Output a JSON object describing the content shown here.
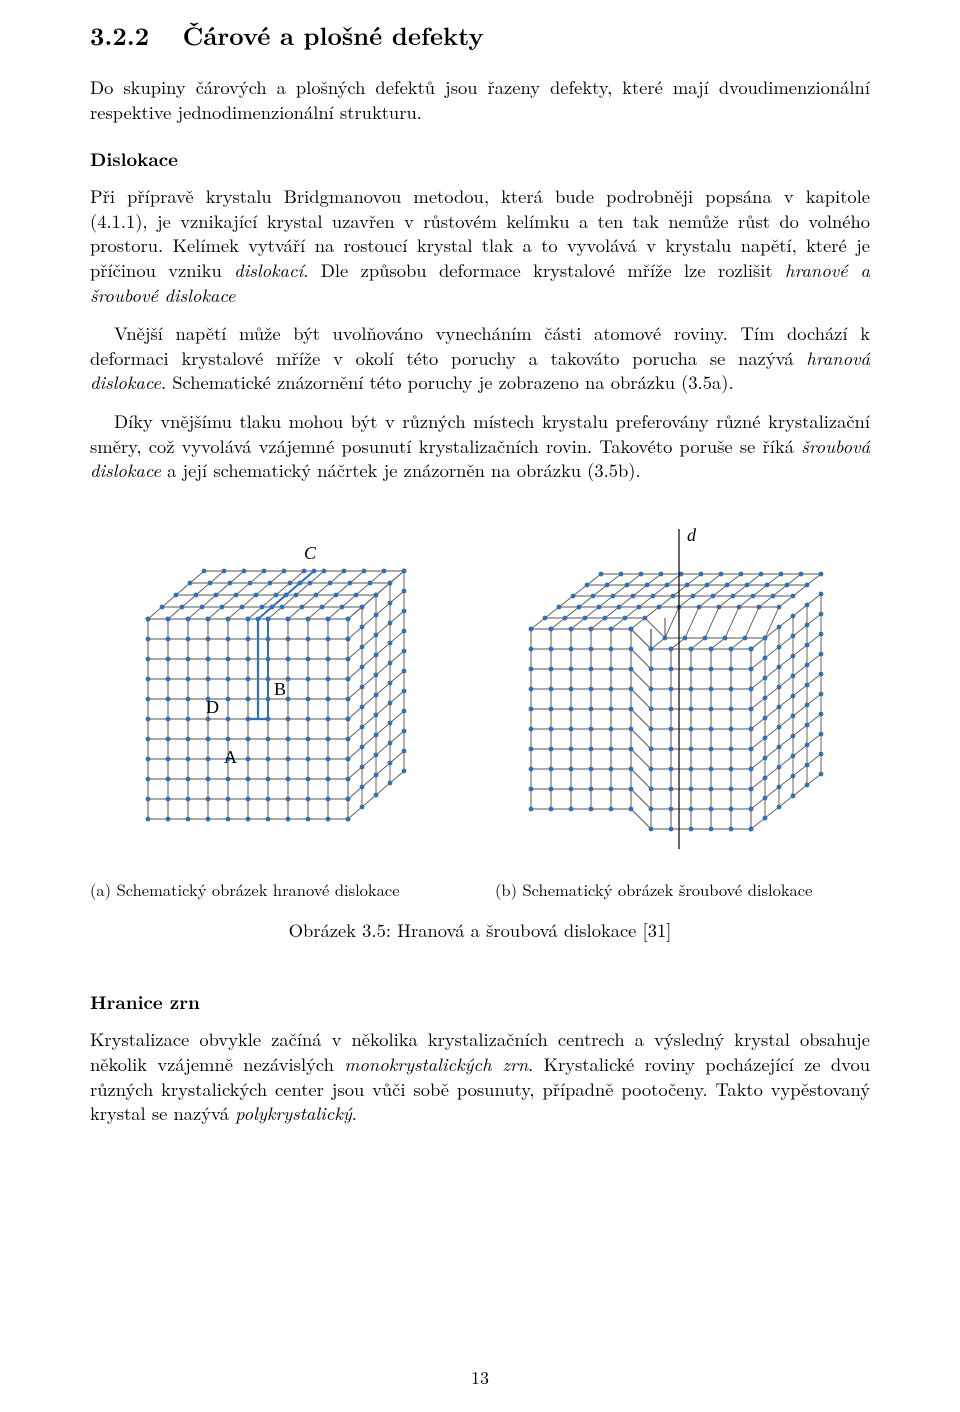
{
  "section": {
    "number": "3.2.2",
    "title": "Čárové a plošné defekty"
  },
  "para_intro": "Do skupiny čárových a plošných defektů jsou řazeny defekty, které mají dvoudimenzionální respektive jednodimenzionální strukturu.",
  "subhead_dislokace": "Dislokace",
  "para_disl_1_before_italic": "Při přípravě krystalu Bridgmanovou metodou, která bude podrobněji popsána v kapitole (4.1.1), je vznikající krystal uzavřen v růstovém kelímku a ten tak nemůže růst do volného prostoru. Kelímek vytváří na rostoucí krystal tlak a to vyvolává v krystalu napětí, které je příčinou vzniku ",
  "para_disl_1_italic_a": "dislokací",
  "para_disl_1_middle": ". Dle způsobu deformace krystalové mříže lze rozlišit ",
  "para_disl_1_italic_b": "hranové a šroubové dislokace",
  "para_disl_2_before_italic": "Vnější napětí může být uvolňováno vynecháním části atomové roviny. Tím dochází k deformaci krystalové mříže v okolí této poruchy a takováto porucha se nazývá ",
  "para_disl_2_italic": "hranová dislokace",
  "para_disl_2_after": ". Schematické znázornění této poruchy je zobrazeno na obrázku (3.5a).",
  "para_disl_3_before_italic": "Díky vnějšímu tlaku mohou být v různých místech krystalu preferovány různé krystalizační směry, což vyvolává vzájemné posunutí krystalizačních rovin. Takovéto poruše se říká ",
  "para_disl_3_italic": "šroubová dislokace",
  "para_disl_3_after": " a její schematický náčrtek je znázorněn na obrázku (3.5b).",
  "figure": {
    "subcap_a": "(a) Schematický obrázek hranové dislokace",
    "subcap_b": "(b) Schematický obrázek šroubové dislokace",
    "maincap": "Obrázek 3.5: Hranová a šroubová dislokace [31]",
    "label_A": "A",
    "label_B": "B",
    "label_C": "C",
    "label_D": "D",
    "label_d": "d",
    "grid_stroke": "#555555",
    "dot_fill": "#2e6fbf",
    "edge_stroke": "#2e6fbf",
    "label_color": "#000000",
    "label_fontsize": 18,
    "cell": 20,
    "a_width": 340,
    "a_height": 340,
    "b_width": 360,
    "b_height": 340
  },
  "subhead_hranice": "Hranice zrn",
  "para_hranice_before_italic_a": "Krystalizace obvykle začíná v několika krystalizačních centrech a výsledný krystal obsahuje několik vzájemně nezávislých ",
  "para_hranice_italic_a": "monokrystalických zrn",
  "para_hranice_middle": ". Krystalické roviny pocházející ze dvou různých krystalických center jsou vůči sobě posunuty, případně pootočeny. Takto vypěstovaný krystal se nazývá ",
  "para_hranice_italic_b": "polykrystalický",
  "para_hranice_after": ".",
  "pagenum": "13"
}
